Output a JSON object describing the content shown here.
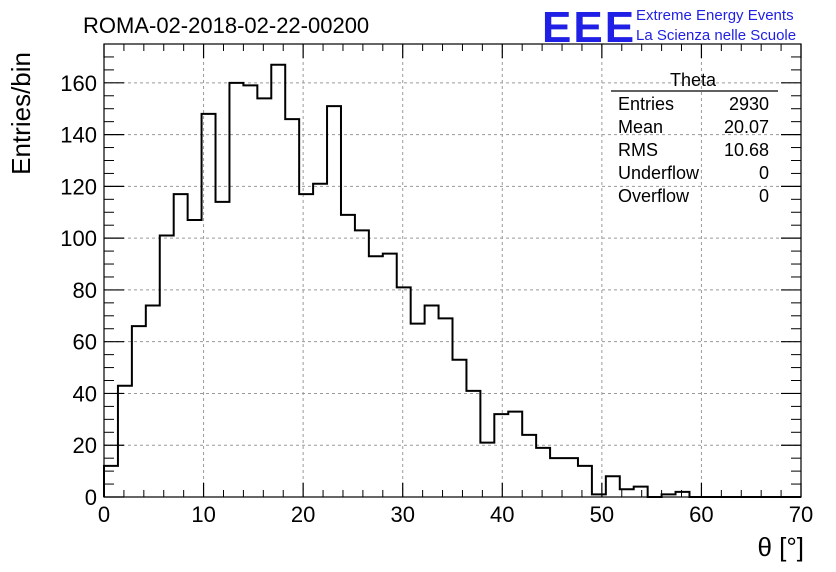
{
  "page_title": "ROMA-02-2018-02-22-00200",
  "logo": {
    "mark": "EEE",
    "line1": "Extreme Energy Events",
    "line2": "La Scienza nelle Scuole",
    "color": "#1f1fe6"
  },
  "stats": {
    "title": "Theta",
    "rows": [
      {
        "label": "Entries",
        "value": "2930"
      },
      {
        "label": "Mean",
        "value": "20.07"
      },
      {
        "label": "RMS",
        "value": "10.68"
      },
      {
        "label": "Underflow",
        "value": "0"
      },
      {
        "label": "Overflow",
        "value": "0"
      }
    ]
  },
  "chart_data": {
    "type": "bar",
    "style": "step-histogram",
    "title": "ROMA-02-2018-02-22-00200",
    "xlabel": "θ [°]",
    "ylabel": "Entries/bin",
    "xlim": [
      0,
      70
    ],
    "ylim": [
      0,
      175
    ],
    "bin_width": 1.4,
    "grid": true,
    "x_ticks": [
      0,
      10,
      20,
      30,
      40,
      50,
      60,
      70
    ],
    "y_ticks": [
      0,
      20,
      40,
      60,
      80,
      100,
      120,
      140,
      160
    ],
    "values": [
      12,
      43,
      66,
      74,
      101,
      117,
      107,
      148,
      114,
      160,
      159,
      154,
      167,
      146,
      117,
      121,
      151,
      109,
      103,
      93,
      94,
      81,
      67,
      74,
      69,
      53,
      41,
      21,
      32,
      33,
      24,
      19,
      15,
      15,
      12,
      1,
      8,
      3,
      4,
      0,
      1,
      2,
      0,
      0,
      0,
      0,
      0,
      0,
      0,
      0
    ]
  }
}
